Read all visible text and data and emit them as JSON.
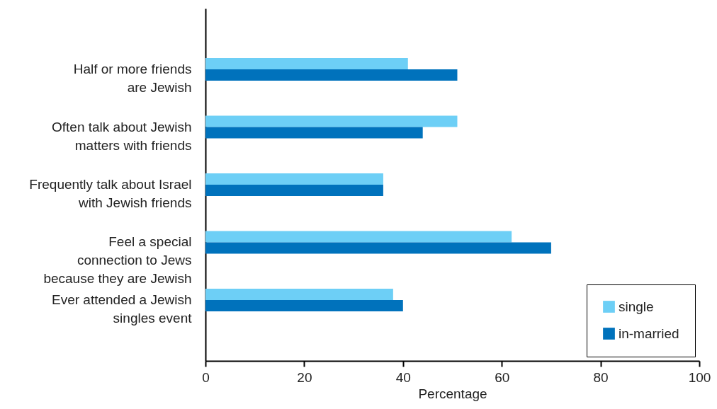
{
  "chart_data": {
    "type": "bar",
    "orientation": "horizontal",
    "xlabel": "Percentage",
    "categories": [
      "Half or more friends are Jewish",
      "Often talk about Jewish matters with friends",
      "Frequently talk about Israel with Jewish friends",
      "Feel a special connection to Jews because they are Jewish",
      "Ever attended a Jewish singles event"
    ],
    "series": [
      {
        "name": "single",
        "color": "#6dcff6",
        "values": [
          41,
          51,
          36,
          62,
          38
        ]
      },
      {
        "name": "in-married",
        "color": "#0072bc",
        "values": [
          51,
          44,
          36,
          70,
          40
        ]
      }
    ],
    "xlim": [
      0,
      100
    ],
    "xticks": [
      0,
      20,
      40,
      60,
      80,
      100
    ],
    "legend": "bottom right"
  }
}
